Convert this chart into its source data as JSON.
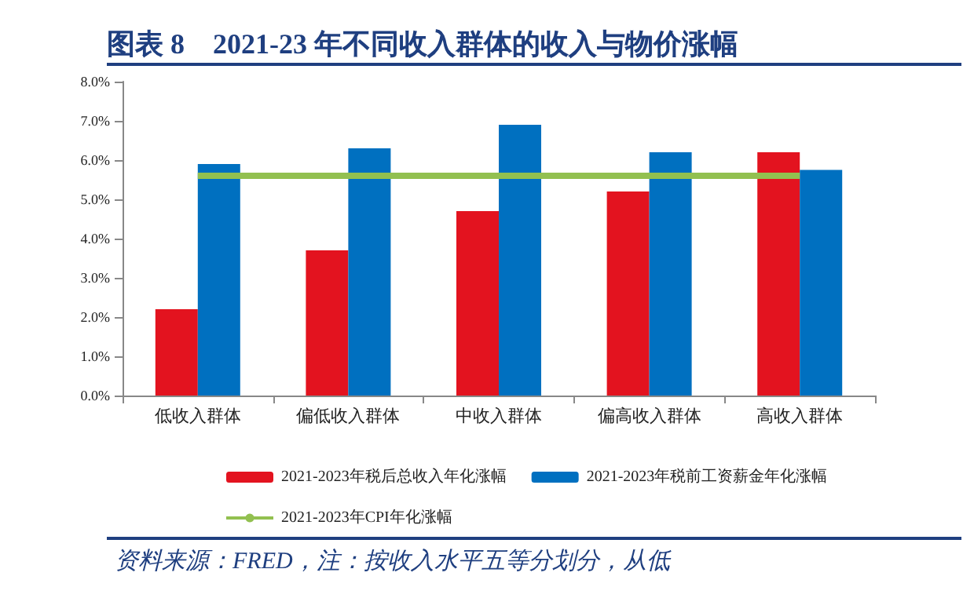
{
  "chart_data": {
    "type": "bar",
    "title": "图表 8　2021-23 年不同收入群体的收入与物价涨幅",
    "categories": [
      "低收入群体",
      "偏低收入群体",
      "中收入群体",
      "偏高收入群体",
      "高收入群体"
    ],
    "series": [
      {
        "name": "2021-2023年税后总收入年化涨幅",
        "color": "#e3131f",
        "values": [
          2.2,
          3.7,
          4.7,
          5.2,
          6.2
        ]
      },
      {
        "name": "2021-2023年税前工资薪金年化涨幅",
        "color": "#0070c0",
        "values": [
          5.9,
          6.3,
          6.9,
          6.2,
          5.75
        ]
      },
      {
        "name": "2021-2023年CPI年化涨幅",
        "type": "line",
        "color": "#92c050",
        "values": [
          5.6,
          5.6,
          5.6,
          5.6,
          5.6
        ]
      }
    ],
    "ylim": [
      0,
      8
    ],
    "yticks": [
      {
        "value": 0,
        "label": "0.0%"
      },
      {
        "value": 1,
        "label": "1.0%"
      },
      {
        "value": 2,
        "label": "2.0%"
      },
      {
        "value": 3,
        "label": "3.0%"
      },
      {
        "value": 4,
        "label": "4.0%"
      },
      {
        "value": 5,
        "label": "5.0%"
      },
      {
        "value": 6,
        "label": "6.0%"
      },
      {
        "value": 7,
        "label": "7.0%"
      },
      {
        "value": 8,
        "label": "8.0%"
      }
    ],
    "grid": false,
    "legend": "bottom",
    "marker": "none",
    "annotations": [
      "资料来源：FRED，注：按收入水平五等分划分，从低"
    ]
  }
}
